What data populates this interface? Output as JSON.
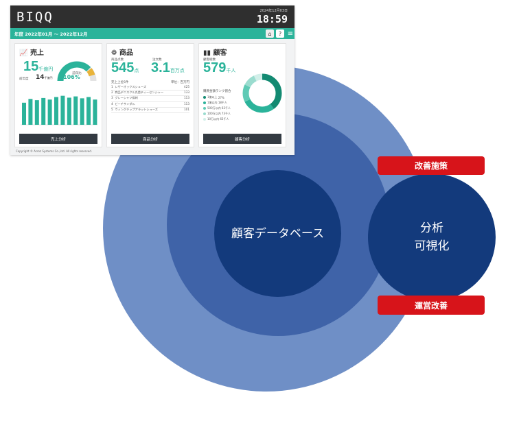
{
  "diagram": {
    "inner_label": "顧客データベース",
    "right_label_line1": "分析",
    "right_label_line2": "可視化",
    "tag_top": "改善施策",
    "tag_bottom": "運営改善"
  },
  "dashboard": {
    "logo": "BIQQ",
    "date": "2024年12月03日",
    "time": "18:59",
    "period": "年度 2022年01月 〜 2022年12月",
    "sales": {
      "title": "売上",
      "value": "15",
      "unit": "千億円",
      "rate_label": "前年比",
      "rate": "106%",
      "rate_fraction": 0.75,
      "yoy_label": "前年度",
      "yoy_value": "14",
      "yoy_unit": "千億円",
      "bars": [
        0.7,
        0.82,
        0.78,
        0.85,
        0.8,
        0.88,
        0.92,
        0.86,
        0.9,
        0.84,
        0.88,
        0.8
      ],
      "button": "売上分析"
    },
    "product": {
      "title": "商品",
      "label1": "商品点数",
      "value1": "545",
      "unit1": "点",
      "label2": "注文数",
      "value2": "3.1",
      "unit2": "百万点",
      "list_title": "売上上位5件",
      "list_head": "単位：百万円",
      "items": [
        {
          "rank": "1",
          "name": "レザーオックスシューズ",
          "value": "425"
        },
        {
          "rank": "2",
          "name": "商品デニスクル丸首ティーセンシャー",
          "value": "133"
        },
        {
          "rank": "3",
          "name": "グレーシャツ襟刺",
          "value": "113"
        },
        {
          "rank": "4",
          "name": "ビーチサンダル",
          "value": "113"
        },
        {
          "rank": "5",
          "name": "ウィングチップアラットシューズ",
          "value": "101"
        }
      ],
      "button": "商品分析"
    },
    "customer": {
      "title": "顧客",
      "label1": "顧客総数",
      "value1": "579",
      "unit1": "千人",
      "legend_title": "購買金額ランク割合",
      "legend": [
        {
          "label": "1億以上",
          "value": "27%",
          "color": "#138a72"
        },
        {
          "label": "1億以内",
          "value": "18千人",
          "color": "#2bb39a"
        },
        {
          "label": "500万以内",
          "value": "63千人",
          "color": "#5fcab5"
        },
        {
          "label": "100万以内",
          "value": "73千人",
          "color": "#9bdccf"
        },
        {
          "label": "10万以内",
          "value": "65千人",
          "color": "#d2efe9"
        }
      ],
      "button": "顧客分析"
    },
    "copyright": "Copyright © Acroz Systems Co.,Ltd. All rights reserved."
  }
}
